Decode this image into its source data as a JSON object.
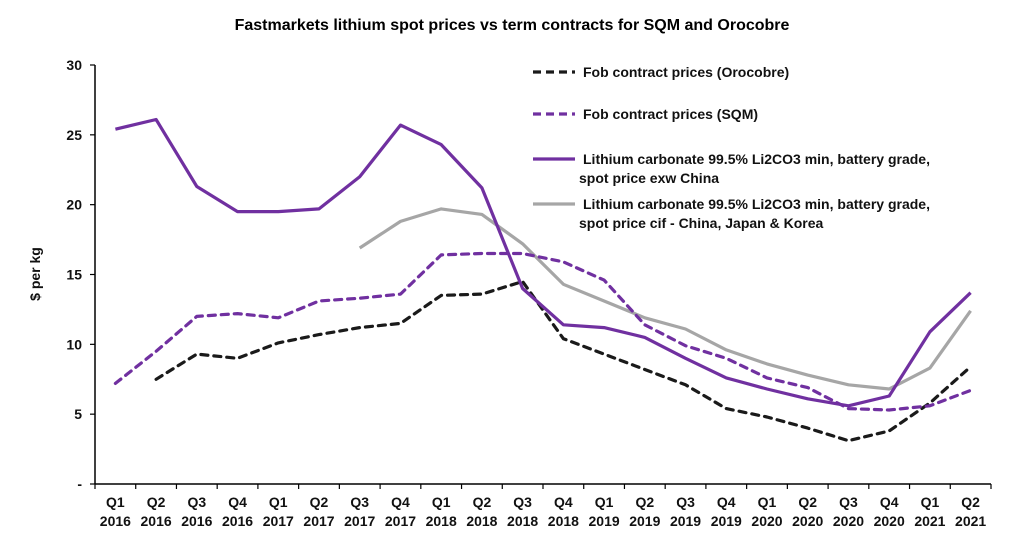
{
  "chart_data": {
    "type": "line",
    "title": "Fastmarkets lithium spot prices vs term contracts for SQM and Orocobre",
    "xlabel": "",
    "ylabel": "$ per kg",
    "ylim": [
      0,
      30
    ],
    "yticks": [
      0,
      5,
      10,
      15,
      20,
      25,
      30
    ],
    "ytick_labels": [
      "-",
      "5",
      "10",
      "15",
      "20",
      "25",
      "30"
    ],
    "grid": false,
    "legend_position": "top-right",
    "categories": [
      [
        "Q1",
        "2016"
      ],
      [
        "Q2",
        "2016"
      ],
      [
        "Q3",
        "2016"
      ],
      [
        "Q4",
        "2016"
      ],
      [
        "Q1",
        "2017"
      ],
      [
        "Q2",
        "2017"
      ],
      [
        "Q3",
        "2017"
      ],
      [
        "Q4",
        "2017"
      ],
      [
        "Q1",
        "2018"
      ],
      [
        "Q2",
        "2018"
      ],
      [
        "Q3",
        "2018"
      ],
      [
        "Q4",
        "2018"
      ],
      [
        "Q1",
        "2019"
      ],
      [
        "Q2",
        "2019"
      ],
      [
        "Q3",
        "2019"
      ],
      [
        "Q4",
        "2019"
      ],
      [
        "Q1",
        "2020"
      ],
      [
        "Q2",
        "2020"
      ],
      [
        "Q3",
        "2020"
      ],
      [
        "Q4",
        "2020"
      ],
      [
        "Q1",
        "2021"
      ],
      [
        "Q2",
        "2021"
      ]
    ],
    "series": [
      {
        "name": "Fob contract prices (Orocobre)",
        "legend_lines": [
          "Fob contract prices (Orocobre)"
        ],
        "color": "#1a1a1a",
        "style": "dashed",
        "values": [
          null,
          7.5,
          9.3,
          9.0,
          10.1,
          10.7,
          11.2,
          11.5,
          13.5,
          13.6,
          14.5,
          10.4,
          9.3,
          8.2,
          7.1,
          5.4,
          4.8,
          4.0,
          3.1,
          3.8,
          5.8,
          8.4
        ]
      },
      {
        "name": "Fob contract prices (SQM)",
        "legend_lines": [
          "Fob contract prices (SQM)"
        ],
        "color": "#7030a0",
        "style": "dashed",
        "values": [
          7.2,
          9.5,
          12.0,
          12.2,
          11.9,
          13.1,
          13.3,
          13.6,
          16.4,
          16.5,
          16.5,
          15.9,
          14.6,
          11.4,
          9.9,
          9.0,
          7.6,
          6.9,
          5.4,
          5.3,
          5.6,
          6.7
        ]
      },
      {
        "name": "Lithium carbonate 99.5% Li2CO3 min, battery grade, spot price exw China",
        "legend_lines": [
          "Lithium carbonate 99.5% Li2CO3 min, battery grade,",
          "spot price exw China"
        ],
        "color": "#7030a0",
        "style": "solid",
        "values": [
          25.4,
          26.1,
          21.3,
          19.5,
          19.5,
          19.7,
          22.0,
          25.7,
          24.3,
          21.2,
          14.0,
          11.4,
          11.2,
          10.5,
          9.0,
          7.6,
          6.8,
          6.1,
          5.6,
          6.3,
          10.9,
          13.7
        ]
      },
      {
        "name": "Lithium carbonate 99.5% Li2CO3 min, battery grade, spot price cif - China, Japan & Korea",
        "legend_lines": [
          "Lithium carbonate 99.5% Li2CO3 min, battery grade,",
          "spot price cif - China, Japan & Korea"
        ],
        "color": "#a6a6a6",
        "style": "solid",
        "values": [
          null,
          null,
          null,
          null,
          null,
          null,
          16.9,
          18.8,
          19.7,
          19.3,
          17.2,
          14.3,
          13.1,
          11.9,
          11.1,
          9.6,
          8.6,
          7.8,
          7.1,
          6.8,
          8.3,
          12.4
        ]
      }
    ]
  }
}
